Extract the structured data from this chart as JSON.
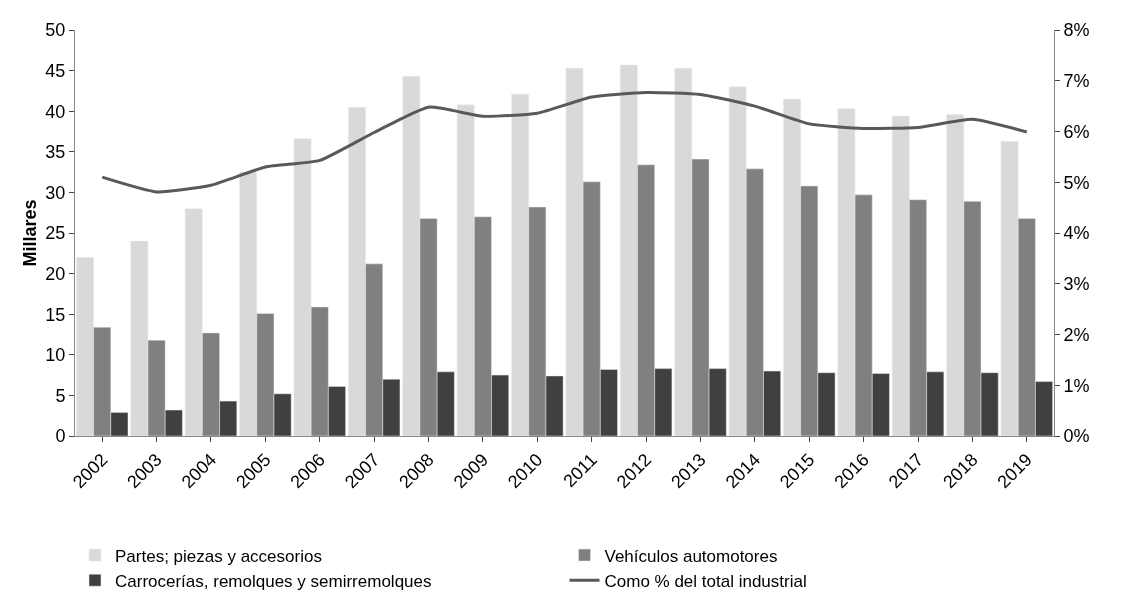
{
  "chart_data": {
    "type": "bar",
    "ylabel": "Millares",
    "categories": [
      "2002",
      "2003",
      "2004",
      "2005",
      "2006",
      "2007",
      "2008",
      "2009",
      "2010",
      "2011",
      "2012",
      "2013",
      "2014",
      "2015",
      "2016",
      "2017",
      "2018",
      "2019"
    ],
    "series": [
      {
        "name": "Partes; piezas y accesorios",
        "color": "#d9d9d9",
        "values": [
          22,
          24,
          28,
          32.5,
          36.6,
          40.5,
          44.3,
          40.8,
          42.1,
          45.3,
          45.7,
          45.3,
          43,
          41.5,
          40.3,
          39.4,
          39.6,
          36.3
        ]
      },
      {
        "name": "Vehículos automotores",
        "color": "#808080",
        "values": [
          13.4,
          11.8,
          12.7,
          15.1,
          15.9,
          21.2,
          26.8,
          27,
          28.2,
          31.3,
          33.4,
          34.1,
          32.9,
          30.8,
          29.7,
          29.1,
          28.9,
          26.8
        ]
      },
      {
        "name": "Carrocerías, remolques y semirremolques",
        "color": "#404040",
        "values": [
          2.9,
          3.2,
          4.3,
          5.2,
          6.1,
          7.0,
          7.9,
          7.5,
          7.4,
          8.2,
          8.3,
          8.3,
          8.0,
          7.8,
          7.7,
          7.9,
          7.8,
          6.7
        ]
      },
      {
        "name": "Como % del total industrial",
        "type": "line",
        "axis": "y2",
        "color": "#595959",
        "values": [
          5.1,
          4.81,
          4.94,
          5.3,
          5.43,
          5.98,
          6.48,
          6.3,
          6.36,
          6.68,
          6.77,
          6.73,
          6.5,
          6.15,
          6.06,
          6.08,
          6.24,
          5.99
        ]
      }
    ],
    "ylim": [
      0,
      50
    ],
    "yticks": [
      0,
      5,
      10,
      15,
      20,
      25,
      30,
      35,
      40,
      45,
      50
    ],
    "y2lim": [
      0,
      8
    ],
    "y2ticks": [
      {
        "value": 0,
        "label": "0%"
      },
      {
        "value": 1,
        "label": "1%"
      },
      {
        "value": 2,
        "label": "2%"
      },
      {
        "value": 3,
        "label": "3%"
      },
      {
        "value": 4,
        "label": "4%"
      },
      {
        "value": 5,
        "label": "5%"
      },
      {
        "value": 6,
        "label": "6%"
      },
      {
        "value": 7,
        "label": "7%"
      },
      {
        "value": 8,
        "label": "8%"
      }
    ],
    "legend": "bottom"
  }
}
